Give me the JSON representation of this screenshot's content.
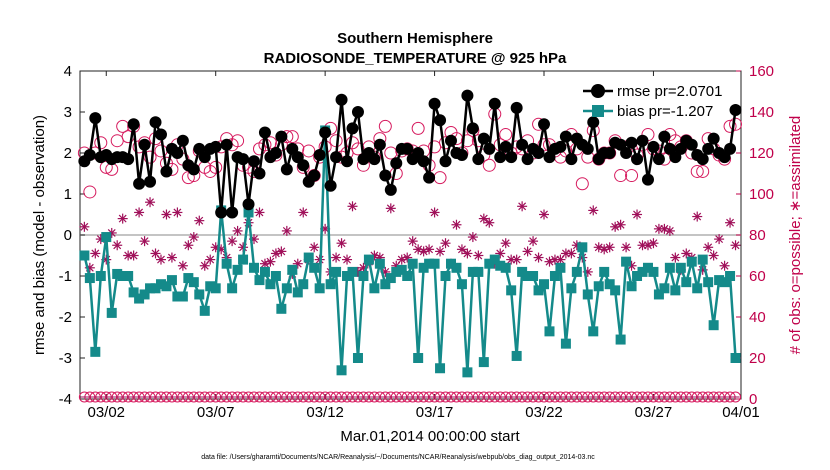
{
  "chart_data": {
    "type": "line",
    "title": "Southern Hemisphere",
    "subtitle": "RADIOSONDE_TEMPERATURE @ 925 hPa",
    "xlabel": "Mar.01,2014 00:00:00 start",
    "ylabel": "rmse and bias (model - observation)",
    "y2label": "# of obs: o=possible; ∗=assimilated",
    "footnote": "data file: /Users/gharamti/Documents/NCAR/Reanalysis/~/Documents/NCAR/Reanalysis/webpub/obs_diag_output_2014-03.nc",
    "xlim": [
      0.8,
      31.0
    ],
    "ylim": [
      -4,
      4
    ],
    "y2lim": [
      0,
      160
    ],
    "grid": false,
    "zero_line": 0,
    "legend_position": "top-right",
    "x_ticks": [
      {
        "x": 2,
        "label": "03/02"
      },
      {
        "x": 7,
        "label": "03/07"
      },
      {
        "x": 12,
        "label": "03/12"
      },
      {
        "x": 17,
        "label": "03/17"
      },
      {
        "x": 22,
        "label": "03/22"
      },
      {
        "x": 27,
        "label": "03/27"
      },
      {
        "x": 32,
        "label": "04/01"
      }
    ],
    "y_ticks": [
      -4,
      -3,
      -2,
      -1,
      0,
      1,
      2,
      3,
      4
    ],
    "y2_ticks": [
      0,
      20,
      40,
      60,
      80,
      100,
      120,
      140,
      160
    ],
    "time_step_days": 0.25,
    "series": [
      {
        "name": "rmse pr=2.0701",
        "axis": "left",
        "color": "#000000",
        "marker": "filled-circle",
        "values": [
          1.8,
          1.95,
          2.85,
          1.9,
          1.95,
          1.85,
          1.9,
          1.9,
          1.85,
          2.7,
          1.25,
          2.2,
          1.3,
          2.75,
          2.45,
          1.55,
          2.1,
          2.0,
          2.3,
          1.7,
          1.6,
          2.1,
          1.9,
          2.1,
          2.15,
          0.55,
          2.2,
          0.55,
          1.9,
          1.85,
          0.75,
          1.8,
          1.5,
          2.5,
          1.9,
          2.0,
          2.4,
          1.6,
          2.1,
          1.9,
          1.7,
          1.3,
          1.45,
          1.95,
          2.5,
          1.2,
          1.9,
          3.3,
          1.8,
          2.6,
          3.0,
          1.85,
          2.0,
          1.85,
          2.2,
          1.45,
          1.1,
          1.75,
          2.1,
          2.1,
          1.85,
          2.0,
          1.8,
          1.4,
          3.2,
          2.8,
          1.8,
          2.3,
          2.0,
          1.95,
          3.4,
          2.6,
          1.85,
          2.35,
          2.1,
          3.2,
          1.9,
          2.15,
          1.9,
          3.1,
          2.2,
          1.85,
          2.1,
          2.0,
          2.7,
          1.9,
          2.1,
          2.15,
          2.4,
          1.85,
          2.35,
          2.2,
          2.1,
          2.75,
          1.85,
          2.0,
          2.0,
          2.25,
          2.2,
          2.0,
          2.25,
          1.85,
          2.3,
          1.35,
          2.15,
          1.85,
          2.4,
          2.1,
          1.9,
          2.1,
          2.3,
          2.2,
          1.95,
          1.85,
          2.1,
          2.35,
          2.0,
          1.9,
          2.1,
          3.05
        ]
      },
      {
        "name": "bias pr=-1.207",
        "axis": "left",
        "color": "#148a8a",
        "marker": "filled-square",
        "values": [
          -0.5,
          -1.05,
          -2.85,
          -1.0,
          -0.05,
          -1.9,
          -0.95,
          -1.0,
          -1.0,
          -1.4,
          -1.55,
          -1.45,
          -1.3,
          -1.3,
          -1.2,
          -1.25,
          -1.1,
          -1.5,
          -1.5,
          -1.05,
          -1.15,
          -1.45,
          -1.85,
          -1.25,
          -1.3,
          0.6,
          -0.7,
          -1.3,
          -0.85,
          -0.6,
          0.55,
          -0.8,
          -1.1,
          -0.9,
          -1.2,
          -1.0,
          -1.8,
          -1.3,
          -0.85,
          -1.4,
          -1.2,
          -0.55,
          -0.8,
          -1.3,
          2.55,
          -1.2,
          -0.9,
          -3.3,
          -1.0,
          -0.9,
          -3.0,
          -1.0,
          -0.6,
          -1.3,
          -0.7,
          -1.2,
          -1.05,
          -0.9,
          -0.85,
          -1.0,
          -0.7,
          -3.0,
          -0.8,
          -0.7,
          -0.7,
          -3.25,
          -1.0,
          -0.7,
          -0.8,
          -1.2,
          -3.35,
          -0.9,
          -0.9,
          -3.1,
          -0.7,
          -0.6,
          -0.75,
          -0.8,
          -1.35,
          -2.95,
          -0.9,
          -1.0,
          -1.0,
          -1.35,
          -1.2,
          -2.35,
          -1.0,
          -0.8,
          -2.65,
          -1.3,
          -0.9,
          -0.3,
          -1.45,
          -2.35,
          -1.25,
          -0.9,
          -1.2,
          -1.35,
          -2.55,
          -0.65,
          -1.25,
          -1.0,
          -0.9,
          -0.8,
          -0.9,
          -1.45,
          -1.3,
          -0.8,
          -1.35,
          -0.8,
          -1.15,
          -0.65,
          -1.3,
          -0.6,
          -1.15,
          -2.2,
          -1.1,
          -1.15,
          -1.0,
          -3.0
        ]
      },
      {
        "name": "possible",
        "axis": "right",
        "color": "#d61a5e",
        "marker": "open-circle",
        "values": [
          120,
          101,
          120,
          125,
          113,
          112,
          126,
          133,
          128,
          133,
          123,
          125,
          118,
          127,
          121,
          115,
          112,
          124,
          117,
          108,
          109,
          121,
          113,
          111,
          113,
          123,
          127,
          124,
          126,
          114,
          113,
          111,
          122,
          124,
          125,
          119,
          124,
          128,
          128,
          122,
          113,
          121,
          109,
          118,
          123,
          132,
          126,
          118,
          120,
          125,
          122,
          114,
          123,
          118,
          127,
          133,
          120,
          110,
          121,
          122,
          121,
          132,
          121,
          114,
          123,
          108,
          125,
          130,
          127,
          120,
          126,
          131,
          126,
          119,
          114,
          139,
          124,
          129,
          120,
          123,
          122,
          126,
          120,
          134,
          124,
          124,
          121,
          118,
          121,
          129,
          122,
          105,
          118,
          131,
          117,
          120,
          120,
          126,
          109,
          123,
          109,
          119,
          124,
          129,
          122,
          121,
          117,
          129,
          126,
          123,
          126,
          120,
          111,
          111,
          127,
          122,
          119,
          117,
          133,
          134
        ]
      },
      {
        "name": "assimilated",
        "axis": "right",
        "color": "#a0105a",
        "marker": "star",
        "values": [
          84,
          64,
          71,
          78,
          68,
          81,
          75,
          88,
          70,
          70,
          91,
          77,
          96,
          71,
          68,
          90,
          69,
          91,
          65,
          75,
          79,
          87,
          65,
          68,
          74,
          73,
          69,
          77,
          82,
          74,
          86,
          78,
          91,
          66,
          67,
          71,
          72,
          82,
          61,
          66,
          91,
          68,
          74,
          68,
          83,
          62,
          69,
          76,
          68,
          94,
          62,
          64,
          67,
          70,
          69,
          62,
          93,
          65,
          68,
          69,
          77,
          73,
          72,
          73,
          91,
          72,
          76,
          66,
          85,
          73,
          71,
          79,
          70,
          88,
          86,
          66,
          71,
          76,
          68,
          68,
          94,
          72,
          77,
          69,
          90,
          67,
          68,
          68,
          71,
          71,
          75,
          69,
          62,
          92,
          74,
          73,
          74,
          84,
          85,
          74,
          65,
          90,
          75,
          75,
          76,
          83,
          83,
          82,
          69,
          63,
          71,
          69,
          89,
          63,
          74,
          70,
          78,
          65,
          86,
          75
        ]
      },
      {
        "name": "possible-lower",
        "axis": "right",
        "color": "#d61a5e",
        "marker": "open-circle",
        "values_constant": 0,
        "note_values": [
          0,
          0,
          0,
          0,
          0,
          0,
          0,
          0,
          0,
          0,
          0,
          0,
          0,
          0,
          0,
          0,
          0,
          0,
          0,
          0,
          0,
          0,
          0,
          0,
          0,
          0,
          0,
          0,
          0,
          0,
          0,
          0,
          0,
          0,
          0,
          0,
          0,
          0,
          0,
          0,
          0,
          0,
          0,
          0,
          0,
          0,
          0,
          0,
          0,
          0,
          0,
          0,
          0,
          0,
          0,
          0,
          0,
          0,
          0,
          0,
          0,
          0,
          0,
          0,
          0,
          0,
          0,
          0,
          0,
          0,
          0,
          0,
          0,
          0,
          0,
          0,
          0,
          0,
          0,
          0,
          0,
          0,
          0,
          0,
          0,
          0,
          0,
          0,
          0,
          0,
          0,
          0,
          0,
          0,
          0,
          0,
          0,
          0,
          0,
          0,
          0,
          0,
          0,
          0,
          0,
          0,
          0,
          0,
          0,
          0,
          0,
          0,
          0,
          0,
          0,
          0,
          0,
          0,
          0,
          0
        ]
      }
    ]
  },
  "colors": {
    "left_axis": "#000000",
    "right_axis": "#c0004a",
    "zero_line": "#b0b0b0",
    "frame": "#222222"
  }
}
